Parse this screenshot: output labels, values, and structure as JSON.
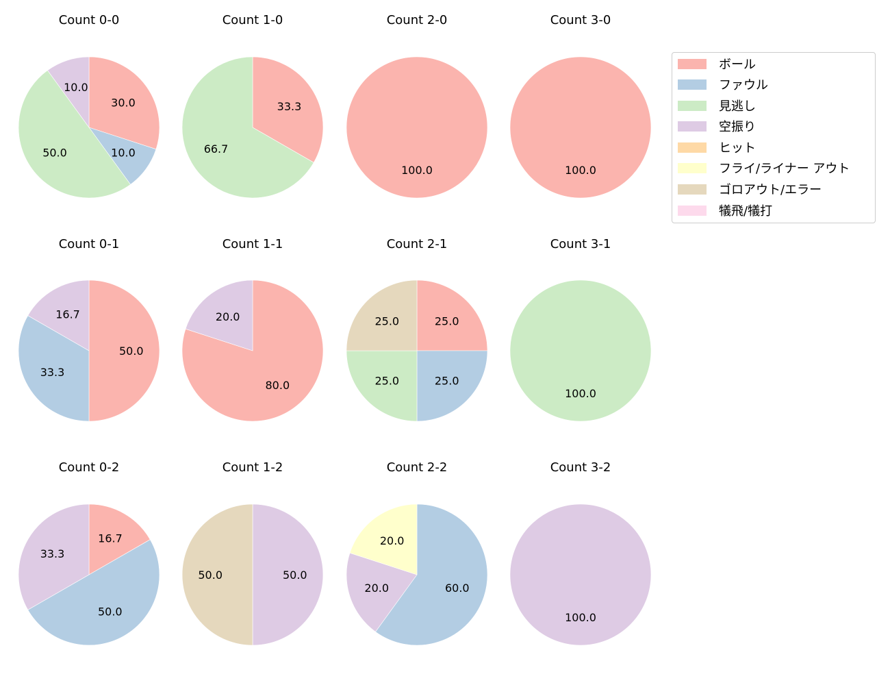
{
  "chart_data": {
    "type": "pie",
    "categories": [
      "ボール",
      "ファウル",
      "見逃し",
      "空振り",
      "ヒット",
      "フライ/ライナー アウト",
      "ゴロアウト/エラー",
      "犠飛/犠打"
    ],
    "colors": [
      "#fbb4ae",
      "#b3cde3",
      "#ccebc5",
      "#decbe4",
      "#fed9a6",
      "#ffffcc",
      "#e5d8bd",
      "#fddaec"
    ],
    "legend_position": "upper right",
    "charts": [
      {
        "title": "Count 0-0",
        "slices": [
          {
            "cat": 0,
            "value": 30.0
          },
          {
            "cat": 1,
            "value": 10.0
          },
          {
            "cat": 2,
            "value": 50.0
          },
          {
            "cat": 3,
            "value": 10.0
          }
        ]
      },
      {
        "title": "Count 1-0",
        "slices": [
          {
            "cat": 0,
            "value": 33.3
          },
          {
            "cat": 2,
            "value": 66.7
          }
        ]
      },
      {
        "title": "Count 2-0",
        "slices": [
          {
            "cat": 0,
            "value": 100.0
          }
        ]
      },
      {
        "title": "Count 3-0",
        "slices": [
          {
            "cat": 0,
            "value": 100.0
          }
        ]
      },
      {
        "title": "Count 0-1",
        "slices": [
          {
            "cat": 0,
            "value": 50.0
          },
          {
            "cat": 1,
            "value": 33.3
          },
          {
            "cat": 3,
            "value": 16.7
          }
        ]
      },
      {
        "title": "Count 1-1",
        "slices": [
          {
            "cat": 0,
            "value": 80.0
          },
          {
            "cat": 3,
            "value": 20.0
          }
        ]
      },
      {
        "title": "Count 2-1",
        "slices": [
          {
            "cat": 0,
            "value": 25.0
          },
          {
            "cat": 1,
            "value": 25.0
          },
          {
            "cat": 2,
            "value": 25.0
          },
          {
            "cat": 6,
            "value": 25.0
          }
        ]
      },
      {
        "title": "Count 3-1",
        "slices": [
          {
            "cat": 2,
            "value": 100.0
          }
        ]
      },
      {
        "title": "Count 0-2",
        "slices": [
          {
            "cat": 0,
            "value": 16.7
          },
          {
            "cat": 1,
            "value": 50.0
          },
          {
            "cat": 3,
            "value": 33.3
          }
        ]
      },
      {
        "title": "Count 1-2",
        "slices": [
          {
            "cat": 3,
            "value": 50.0
          },
          {
            "cat": 6,
            "value": 50.0
          }
        ]
      },
      {
        "title": "Count 2-2",
        "slices": [
          {
            "cat": 1,
            "value": 60.0
          },
          {
            "cat": 3,
            "value": 20.0
          },
          {
            "cat": 5,
            "value": 20.0
          }
        ]
      },
      {
        "title": "Count 3-2",
        "slices": [
          {
            "cat": 3,
            "value": 100.0
          }
        ]
      }
    ]
  },
  "legend": {
    "items": [
      {
        "label": "ボール",
        "color": "#fbb4ae"
      },
      {
        "label": "ファウル",
        "color": "#b3cde3"
      },
      {
        "label": "見逃し",
        "color": "#ccebc5"
      },
      {
        "label": "空振り",
        "color": "#decbe4"
      },
      {
        "label": "ヒット",
        "color": "#fed9a6"
      },
      {
        "label": "フライ/ライナー アウト",
        "color": "#ffffcc"
      },
      {
        "label": "ゴロアウト/エラー",
        "color": "#e5d8bd"
      },
      {
        "label": "犠飛/犠打",
        "color": "#fddaec"
      }
    ]
  }
}
